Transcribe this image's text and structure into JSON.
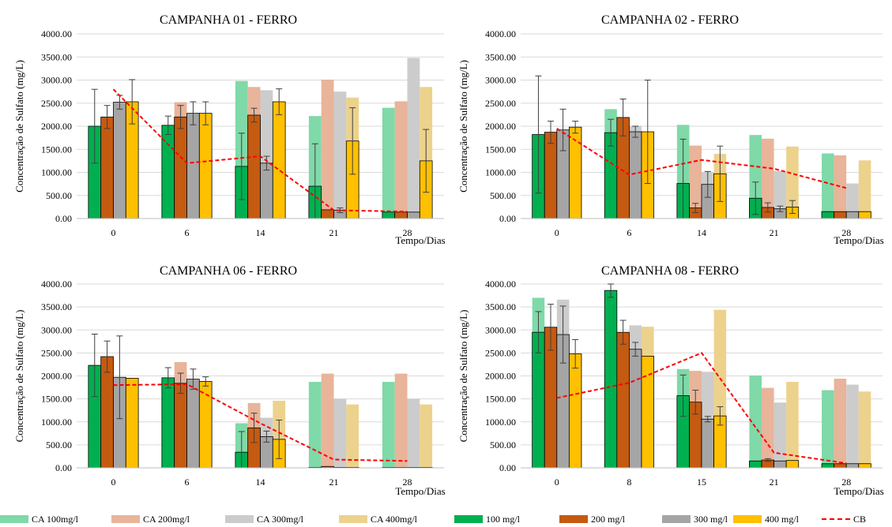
{
  "colors": {
    "CA 100mg/l": "#7fd9a8",
    "CA 200mg/l": "#e8b49a",
    "CA 300mg/l": "#cccccc",
    "CA 400mg/l": "#ecd28c",
    "100 mg/l": "#00b050",
    "200 mg/l": "#c55a11",
    "300 mg/l": "#a5a5a5",
    "400 mg/l": "#ffc000",
    "CB": "#ff0000"
  },
  "legend": {
    "items": [
      {
        "label": "CA 100mg/l",
        "kind": "bar"
      },
      {
        "label": "CA 200mg/l",
        "kind": "bar"
      },
      {
        "label": "CA 300mg/l",
        "kind": "bar"
      },
      {
        "label": "CA 400mg/l",
        "kind": "bar"
      },
      {
        "label": "100 mg/l",
        "kind": "bar"
      },
      {
        "label": "200 mg/l",
        "kind": "bar"
      },
      {
        "label": "300 mg/l",
        "kind": "bar"
      },
      {
        "label": "400 mg/l",
        "kind": "bar"
      },
      {
        "label": "CB",
        "kind": "line"
      }
    ]
  },
  "chart_data": [
    {
      "type": "bar",
      "title": "CAMPANHA 01 - FERRO",
      "ylabel": "Concentração de Sulfato (mg/L)",
      "xlabel": "Tempo/Dias",
      "ylim": [
        0,
        4000
      ],
      "yticks": [
        "0.00",
        "500.00",
        "1000.00",
        "1500.00",
        "2000.00",
        "2500.00",
        "3000.00",
        "3500.00",
        "4000.00"
      ],
      "categories": [
        "0",
        "6",
        "14",
        "21",
        "28"
      ],
      "ca_series": [
        {
          "name": "CA 100mg/l",
          "values": [
            null,
            null,
            2980,
            2220,
            2400
          ]
        },
        {
          "name": "CA 200mg/l",
          "values": [
            null,
            2520,
            2850,
            3010,
            2540
          ]
        },
        {
          "name": "CA 300mg/l",
          "values": [
            null,
            null,
            2780,
            2750,
            3480
          ]
        },
        {
          "name": "CA 400mg/l",
          "values": [
            null,
            null,
            null,
            2620,
            2850
          ]
        }
      ],
      "series": [
        {
          "name": "100 mg/l",
          "values": [
            2000,
            2020,
            1130,
            700,
            140
          ],
          "err": [
            800,
            200,
            720,
            920,
            0
          ]
        },
        {
          "name": "200 mg/l",
          "values": [
            2200,
            2200,
            2240,
            190,
            140
          ],
          "err": [
            250,
            250,
            150,
            0,
            0
          ]
        },
        {
          "name": "300 mg/l",
          "values": [
            2520,
            2280,
            1200,
            180,
            140
          ],
          "err": [
            150,
            250,
            150,
            50,
            0
          ]
        },
        {
          "name": "400 mg/l",
          "values": [
            2530,
            2280,
            2530,
            1680,
            1250
          ],
          "err": [
            480,
            250,
            280,
            720,
            680
          ]
        }
      ],
      "cb": {
        "name": "CB",
        "values": [
          2800,
          1200,
          1350,
          180,
          150
        ]
      }
    },
    {
      "type": "bar",
      "title": "CAMPANHA 02 - FERRO",
      "ylabel": "Concentração de Sulfato (mg/L)",
      "xlabel": "Tempo/Dias",
      "ylim": [
        0,
        4000
      ],
      "yticks": [
        "0.00",
        "500.00",
        "1000.00",
        "1500.00",
        "2000.00",
        "2500.00",
        "3000.00",
        "3500.00",
        "4000.00"
      ],
      "categories": [
        "0",
        "6",
        "14",
        "21",
        "28"
      ],
      "ca_series": [
        {
          "name": "CA 100mg/l",
          "values": [
            null,
            2370,
            2030,
            1810,
            1410
          ]
        },
        {
          "name": "CA 200mg/l",
          "values": [
            null,
            null,
            1580,
            1730,
            1370
          ]
        },
        {
          "name": "CA 300mg/l",
          "values": [
            null,
            2010,
            1010,
            1030,
            760
          ]
        },
        {
          "name": "CA 400mg/l",
          "values": [
            null,
            null,
            1400,
            1560,
            1260
          ]
        }
      ],
      "series": [
        {
          "name": "100 mg/l",
          "values": [
            1820,
            1860,
            760,
            440,
            150
          ],
          "err": [
            1270,
            290,
            960,
            350,
            0
          ]
        },
        {
          "name": "200 mg/l",
          "values": [
            1870,
            2190,
            230,
            240,
            150
          ],
          "err": [
            240,
            400,
            100,
            100,
            0
          ]
        },
        {
          "name": "300 mg/l",
          "values": [
            1920,
            1880,
            740,
            210,
            150
          ],
          "err": [
            450,
            120,
            280,
            60,
            0
          ]
        },
        {
          "name": "400 mg/l",
          "values": [
            1980,
            1880,
            970,
            250,
            150
          ],
          "err": [
            130,
            1120,
            600,
            140,
            0
          ]
        }
      ],
      "cb": {
        "name": "CB",
        "values": [
          1950,
          950,
          1270,
          1080,
          660
        ]
      }
    },
    {
      "type": "bar",
      "title": "CAMPANHA 06 - FERRO",
      "ylabel": "Concentração de Sulfato (mg/L)",
      "xlabel": "Tempo/Dias",
      "ylim": [
        0,
        4000
      ],
      "yticks": [
        "0.00",
        "500.00",
        "1000.00",
        "1500.00",
        "2000.00",
        "2500.00",
        "3000.00",
        "3500.00",
        "4000.00"
      ],
      "categories": [
        "0",
        "6",
        "14",
        "21",
        "28"
      ],
      "ca_series": [
        {
          "name": "CA 100mg/l",
          "values": [
            null,
            null,
            970,
            1870,
            1870
          ]
        },
        {
          "name": "CA 200mg/l",
          "values": [
            null,
            2300,
            1410,
            2050,
            2050
          ]
        },
        {
          "name": "CA 300mg/l",
          "values": [
            null,
            null,
            1090,
            1500,
            1500
          ]
        },
        {
          "name": "CA 400mg/l",
          "values": [
            null,
            null,
            1460,
            1380,
            1380
          ]
        }
      ],
      "series": [
        {
          "name": "100 mg/l",
          "values": [
            2230,
            1960,
            340,
            10,
            10
          ],
          "err": [
            680,
            220,
            450,
            0,
            0
          ]
        },
        {
          "name": "200 mg/l",
          "values": [
            2420,
            1840,
            870,
            30,
            10
          ],
          "err": [
            340,
            220,
            320,
            0,
            0
          ]
        },
        {
          "name": "300 mg/l",
          "values": [
            1970,
            1930,
            680,
            10,
            10
          ],
          "err": [
            900,
            220,
            120,
            0,
            0
          ]
        },
        {
          "name": "400 mg/l",
          "values": [
            1950,
            1880,
            620,
            10,
            10
          ],
          "err": [
            0,
            100,
            420,
            0,
            0
          ]
        }
      ],
      "cb": {
        "name": "CB",
        "values": [
          1800,
          1820,
          970,
          180,
          150
        ]
      }
    },
    {
      "type": "bar",
      "title": "CAMPANHA 08 - FERRO",
      "ylabel": "Concentração de Sulfato (mg/L)",
      "xlabel": "Tempo/Dias",
      "ylim": [
        0,
        4000
      ],
      "yticks": [
        "0.00",
        "500.00",
        "1000.00",
        "1500.00",
        "2000.00",
        "2500.00",
        "3000.00",
        "3500.00",
        "4000.00"
      ],
      "categories": [
        "0",
        "8",
        "15",
        "21",
        "28"
      ],
      "ca_series": [
        {
          "name": "CA 100mg/l",
          "values": [
            3700,
            null,
            2150,
            2010,
            1690
          ]
        },
        {
          "name": "CA 200mg/l",
          "values": [
            null,
            null,
            2110,
            1740,
            1940
          ]
        },
        {
          "name": "CA 300mg/l",
          "values": [
            3660,
            3100,
            2090,
            1420,
            1810
          ]
        },
        {
          "name": "CA 400mg/l",
          "values": [
            null,
            3070,
            3440,
            1870,
            1660
          ]
        }
      ],
      "series": [
        {
          "name": "100 mg/l",
          "values": [
            2950,
            3860,
            1570,
            150,
            90
          ],
          "err": [
            450,
            150,
            450,
            0,
            0
          ]
        },
        {
          "name": "200 mg/l",
          "values": [
            3060,
            2950,
            1430,
            170,
            90
          ],
          "err": [
            500,
            260,
            260,
            30,
            0
          ]
        },
        {
          "name": "300 mg/l",
          "values": [
            2900,
            2580,
            1060,
            150,
            90
          ],
          "err": [
            620,
            150,
            60,
            0,
            0
          ]
        },
        {
          "name": "400 mg/l",
          "values": [
            2480,
            2430,
            1130,
            160,
            90
          ],
          "err": [
            310,
            0,
            200,
            0,
            0
          ]
        }
      ],
      "cb": {
        "name": "CB",
        "values": [
          1520,
          1850,
          2500,
          330,
          100
        ]
      }
    }
  ]
}
